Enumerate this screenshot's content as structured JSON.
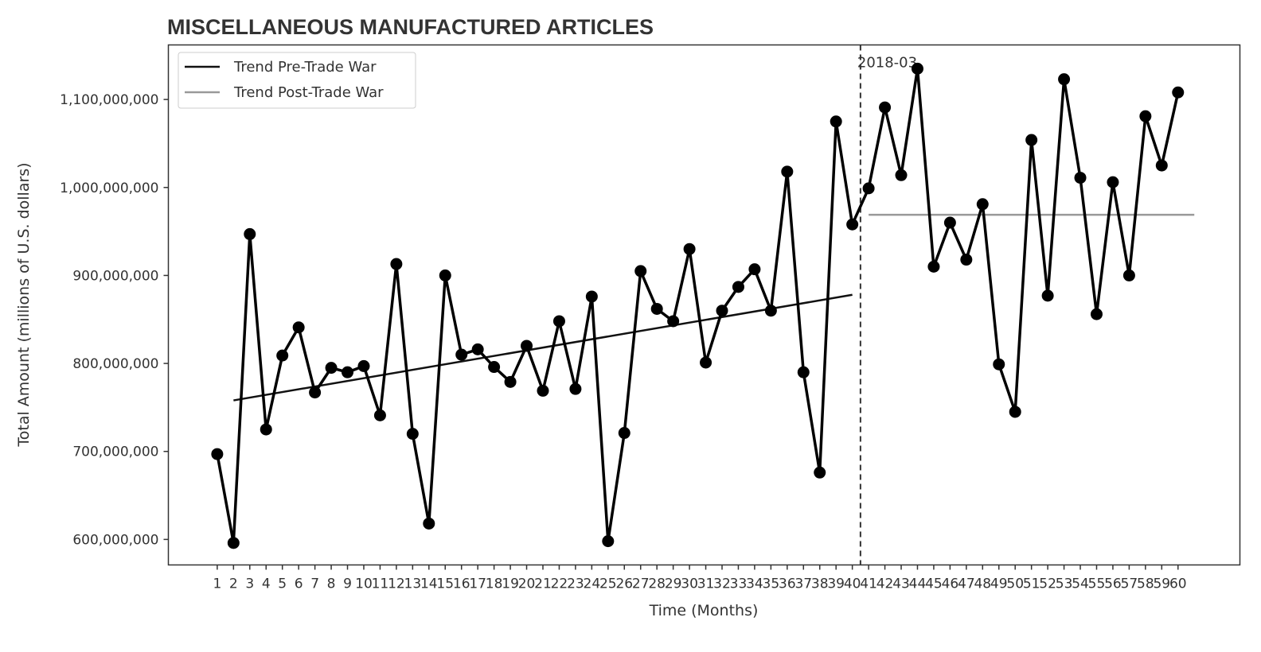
{
  "chart_data": {
    "type": "line",
    "title": "MISCELLANEOUS MANUFACTURED ARTICLES",
    "xlabel": "Time (Months)",
    "ylabel": "Total Amount (millions of U.S. dollars)",
    "x": [
      1,
      2,
      3,
      4,
      5,
      6,
      7,
      8,
      9,
      10,
      11,
      12,
      13,
      14,
      15,
      16,
      17,
      18,
      19,
      20,
      21,
      22,
      23,
      24,
      25,
      26,
      27,
      28,
      29,
      30,
      31,
      32,
      33,
      34,
      35,
      36,
      37,
      38,
      39,
      40,
      41,
      42,
      43,
      44,
      45,
      46,
      47,
      48,
      49,
      50,
      51,
      52,
      53,
      54,
      55,
      56,
      57,
      58,
      59,
      60
    ],
    "xlim": [
      -2.0,
      63.8
    ],
    "ylim": [
      571000000,
      1162000000
    ],
    "yticks": [
      600000000,
      700000000,
      800000000,
      900000000,
      1000000000,
      1100000000
    ],
    "ytick_labels": [
      "600,000,000",
      "700,000,000",
      "800,000,000",
      "900,000,000",
      "1,000,000,000",
      "1,100,000,000"
    ],
    "series": [
      {
        "values": [
          697000000,
          596000000,
          947000000,
          725000000,
          809000000,
          841000000,
          767000000,
          795000000,
          790000000,
          797000000,
          741000000,
          913000000,
          720000000,
          618000000,
          900000000,
          810000000,
          816000000,
          796000000,
          779000000,
          820000000,
          769000000,
          848000000,
          771000000,
          876000000,
          598000000,
          721000000,
          905000000,
          862000000,
          848000000,
          930000000,
          801000000,
          860000000,
          887000000,
          907000000,
          860000000,
          1018000000,
          790000000,
          676000000,
          1075000000,
          958000000,
          999000000,
          1091000000,
          1014000000,
          1135000000,
          910000000,
          960000000,
          918000000,
          981000000,
          799000000,
          745000000,
          1054000000,
          877000000,
          1123000000,
          1011000000,
          856000000,
          1006000000,
          900000000,
          1081000000,
          1025000000,
          1108000000
        ],
        "color": "#000000"
      }
    ],
    "trends": [
      {
        "name": "Trend Pre-Trade War",
        "x": [
          2,
          40
        ],
        "y": [
          758000000,
          878000000
        ],
        "color": "#111111"
      },
      {
        "name": "Trend Post-Trade War",
        "x": [
          41,
          61
        ],
        "y": [
          969000000,
          969000000
        ],
        "color": "#999999"
      }
    ],
    "vline": {
      "x": 40.5,
      "label": "2018-03",
      "style": "dashed"
    },
    "legend": {
      "position": "upper-left"
    },
    "grid": false
  }
}
